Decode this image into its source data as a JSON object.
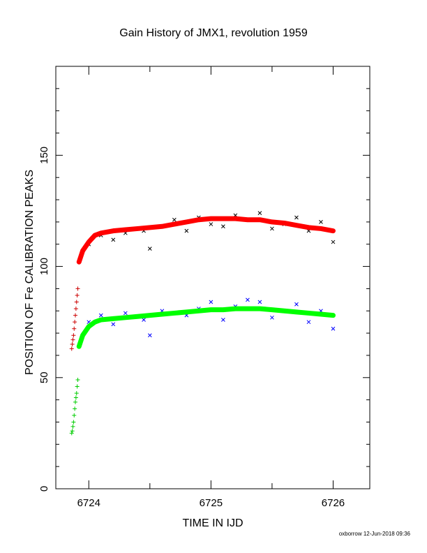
{
  "chart_data": {
    "type": "scatter",
    "title": "Gain History of JMX1, revolution 1959",
    "xlabel": "TIME IN IJD",
    "ylabel": "POSITION OF Fe CALIBRATION PEAKS",
    "xlim": [
      6723.73,
      6726.3
    ],
    "ylim": [
      0,
      190
    ],
    "x_ticks": [
      "6724",
      "6725",
      "6726"
    ],
    "y_ticks": [
      "0",
      "50",
      "100",
      "150"
    ],
    "footer": "oxborrow 12-Jun-2018 09:36",
    "colors": {
      "black": "#000000",
      "red": "#ff0000",
      "blue": "#0000ff",
      "green": "#00ff00"
    },
    "series": [
      {
        "marker": "plus",
        "color": "#cc0000",
        "x": [
          6723.86,
          6723.865,
          6723.87,
          6723.875,
          6723.88,
          6723.885,
          6723.89,
          6723.895,
          6723.9,
          6723.905,
          6723.91
        ],
        "y": [
          63,
          65,
          67,
          69,
          72,
          75,
          78,
          81,
          84,
          87,
          90
        ]
      },
      {
        "marker": "plus",
        "color": "#00cc00",
        "x": [
          6723.86,
          6723.865,
          6723.87,
          6723.875,
          6723.88,
          6723.885,
          6723.89,
          6723.895,
          6723.9,
          6723.905,
          6723.91
        ],
        "y": [
          25,
          26,
          28,
          30,
          33,
          36,
          39,
          41,
          43,
          46,
          49
        ]
      },
      {
        "marker": "cross",
        "color": "#000000",
        "x": [
          6724.0,
          6724.1,
          6724.2,
          6724.3,
          6724.45,
          6724.5,
          6724.6,
          6724.7,
          6724.8,
          6724.9,
          6725.0,
          6725.1,
          6725.2,
          6725.3,
          6725.4,
          6725.5,
          6725.6,
          6725.7,
          6725.8,
          6725.9,
          6726.0
        ],
        "y": [
          110,
          114,
          112,
          115,
          116,
          108,
          118,
          121,
          116,
          122,
          119,
          118,
          123,
          121,
          124,
          117,
          119,
          122,
          116,
          120,
          111
        ]
      },
      {
        "marker": "cross",
        "color": "#0000ff",
        "x": [
          6724.0,
          6724.1,
          6724.2,
          6724.3,
          6724.45,
          6724.5,
          6724.6,
          6724.7,
          6724.8,
          6724.9,
          6725.0,
          6725.1,
          6725.2,
          6725.3,
          6725.4,
          6725.5,
          6725.6,
          6725.7,
          6725.8,
          6725.9,
          6726.0
        ],
        "y": [
          75,
          78,
          74,
          79,
          76,
          69,
          80,
          79,
          78,
          81,
          84,
          76,
          82,
          85,
          84,
          77,
          80,
          83,
          75,
          80,
          72
        ]
      },
      {
        "marker": "thick-line",
        "color": "#ff0000",
        "x": [
          6723.92,
          6723.95,
          6724.0,
          6724.05,
          6724.1,
          6724.2,
          6724.3,
          6724.4,
          6724.5,
          6724.6,
          6724.7,
          6724.8,
          6724.9,
          6725.0,
          6725.1,
          6725.2,
          6725.3,
          6725.4,
          6725.5,
          6725.6,
          6725.7,
          6725.8,
          6725.9,
          6726.0
        ],
        "y": [
          102,
          107,
          111,
          114,
          115,
          116,
          116.5,
          117,
          117.5,
          118,
          119,
          120,
          121,
          121.5,
          121.5,
          121.5,
          121,
          121,
          120,
          119.5,
          118.5,
          117.5,
          117,
          116
        ]
      },
      {
        "marker": "thick-line",
        "color": "#00ff00",
        "x": [
          6723.92,
          6723.95,
          6724.0,
          6724.05,
          6724.1,
          6724.2,
          6724.3,
          6724.4,
          6724.5,
          6724.6,
          6724.7,
          6724.8,
          6724.9,
          6725.0,
          6725.1,
          6725.2,
          6725.3,
          6725.4,
          6725.5,
          6725.6,
          6725.7,
          6725.8,
          6725.9,
          6726.0
        ],
        "y": [
          64,
          69,
          73,
          75,
          76,
          76.5,
          77,
          77.5,
          78,
          78.5,
          79,
          79.5,
          80,
          80.5,
          80.5,
          81,
          81,
          81,
          80.5,
          80,
          79.5,
          79,
          78.5,
          78
        ]
      }
    ]
  }
}
